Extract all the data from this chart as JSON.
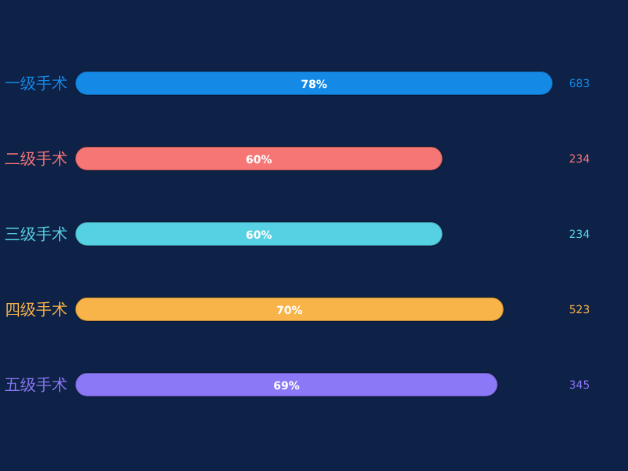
{
  "chart_data": {
    "type": "bar",
    "orientation": "horizontal",
    "categories": [
      "一级手术",
      "二级手术",
      "三级手术",
      "四级手术",
      "五级手术"
    ],
    "values": [
      78,
      60,
      60,
      70,
      69
    ],
    "value_labels": [
      "78%",
      "60%",
      "60%",
      "70%",
      "69%"
    ],
    "colors": [
      "#1589e6",
      "#f67676",
      "#56d0e3",
      "#f8b448",
      "#8b78f6"
    ],
    "annotations": [
      "683",
      "234",
      "234",
      "523",
      "345"
    ]
  }
}
